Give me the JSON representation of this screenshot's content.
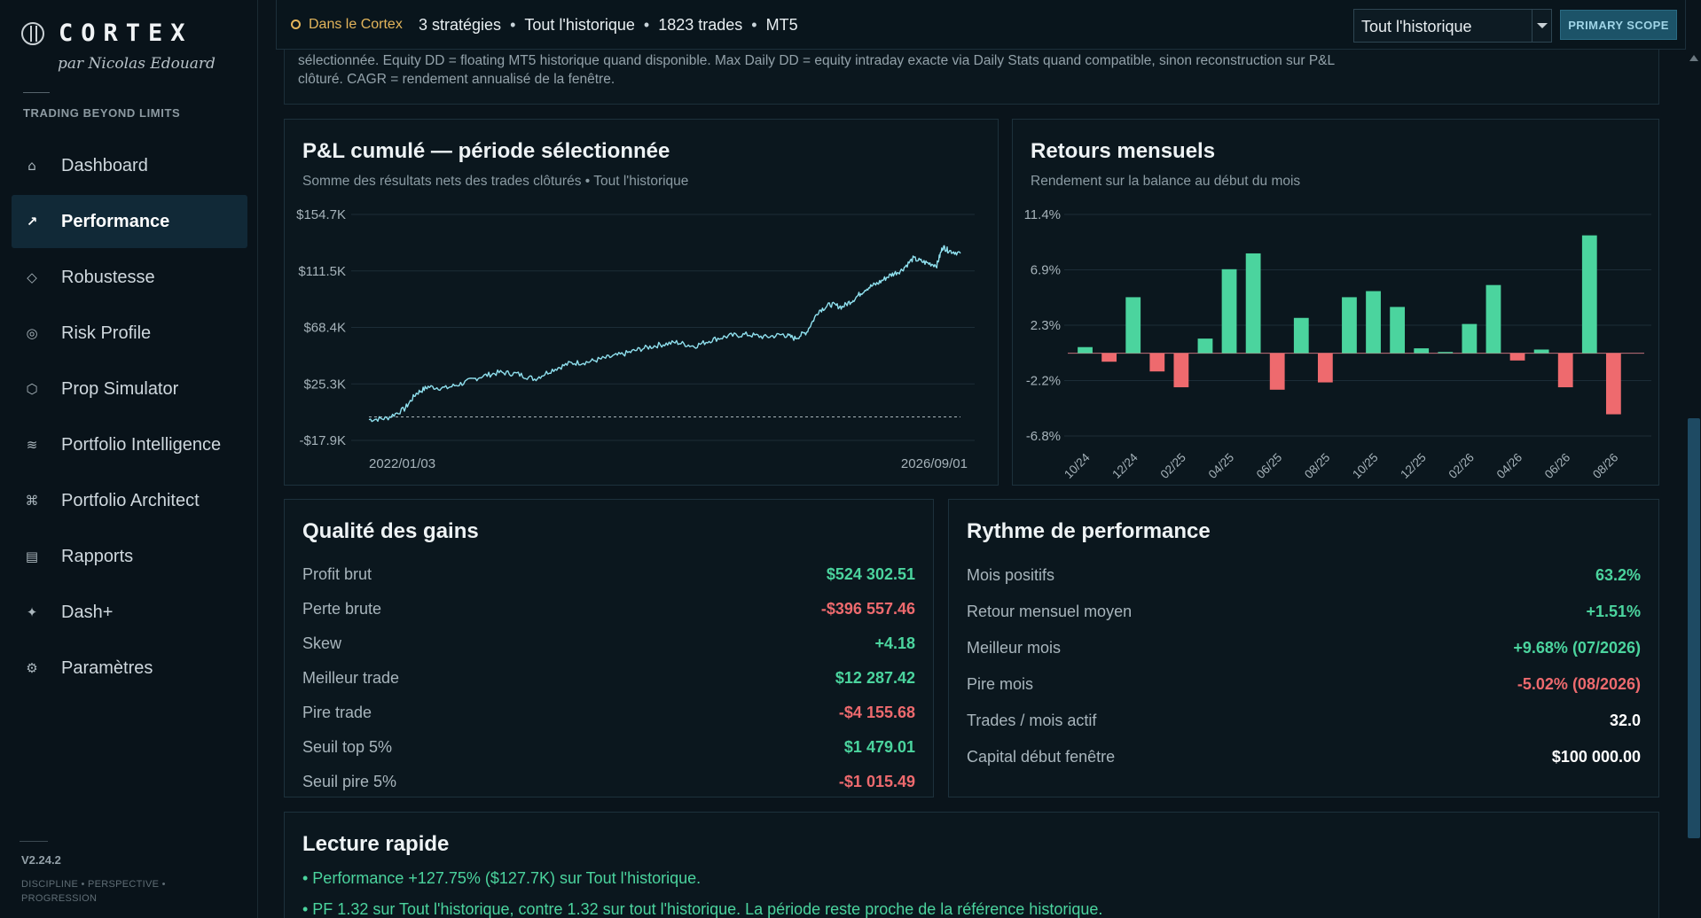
{
  "brand": {
    "name": "CORTEX",
    "author": "par Nicolas Edouard",
    "tagline": "TRADING BEYOND LIMITS",
    "version": "V2.24.2",
    "motto": "DISCIPLINE • PERSPECTIVE • PROGRESSION"
  },
  "nav": [
    {
      "label": "Dashboard",
      "icon": "⌂",
      "icon_name": "home-icon",
      "active": false
    },
    {
      "label": "Performance",
      "icon": "↗",
      "icon_name": "trend-arrow-icon",
      "active": true
    },
    {
      "label": "Robustesse",
      "icon": "◇",
      "icon_name": "diamond-icon",
      "active": false
    },
    {
      "label": "Risk Profile",
      "icon": "◎",
      "icon_name": "target-icon",
      "active": false
    },
    {
      "label": "Prop Simulator",
      "icon": "⬡",
      "icon_name": "hexagon-icon",
      "active": false
    },
    {
      "label": "Portfolio Intelligence",
      "icon": "≋",
      "icon_name": "waves-icon",
      "active": false
    },
    {
      "label": "Portfolio Architect",
      "icon": "⌘",
      "icon_name": "command-icon",
      "active": false
    },
    {
      "label": "Rapports",
      "icon": "▤",
      "icon_name": "report-icon",
      "active": false
    },
    {
      "label": "Dash+",
      "icon": "✦",
      "icon_name": "sparkle-icon",
      "active": false
    },
    {
      "label": "Paramètres",
      "icon": "⚙",
      "icon_name": "gear-icon",
      "active": false
    }
  ],
  "topbar": {
    "scope_label": "Dans le Cortex",
    "strategies": "3 stratégies",
    "period": "Tout l'historique",
    "trades": "1823 trades",
    "platform": "MT5",
    "select_value": "Tout l'historique",
    "primary_scope": "PRIMARY SCOPE"
  },
  "note": "* Sharpe / Sortino réalisés = rendements journaliers des P&L clôturés, annualisés (252 jours, taux sans risque/MAR 0). Max Drawdown = DD des trades clôturés sur la période sélectionnée. Equity DD = floating MT5 historique quand disponible. Max Daily DD = equity intraday exacte via Daily Stats quand compatible, sinon reconstruction sur P&L clôturé. CAGR = rendement annualisé de la fenêtre.",
  "pnl_card": {
    "title": "P&L cumulé — période sélectionnée",
    "subtitle": "Somme des résultats nets des trades clôturés • Tout l'historique"
  },
  "monthly_card": {
    "title": "Retours mensuels",
    "subtitle": "Rendement sur la balance au début du mois"
  },
  "chart_data": [
    {
      "type": "line",
      "title": "P&L cumulé — période sélectionnée",
      "x_range": [
        "2022/01/03",
        "2026/09/01"
      ],
      "ylim": [
        -17900,
        154700
      ],
      "y_ticks": [
        "$154.7K",
        "$111.5K",
        "$68.4K",
        "$25.3K",
        "-$17.9K"
      ],
      "x_tick_labels": [
        "2022/01/03",
        "2026/09/01"
      ],
      "baseline": 0,
      "series": [
        {
          "x": [
            0,
            0.03,
            0.06,
            0.08,
            0.1,
            0.13,
            0.16,
            0.19,
            0.22,
            0.25,
            0.28,
            0.31,
            0.34,
            0.37,
            0.4,
            0.43,
            0.46,
            0.49,
            0.52,
            0.55,
            0.58,
            0.61,
            0.64,
            0.67,
            0.7,
            0.72,
            0.74,
            0.76,
            0.78,
            0.8,
            0.82,
            0.84,
            0.86,
            0.88,
            0.9,
            0.92,
            0.94,
            0.96,
            0.97,
            0.98,
            1.0
          ],
          "y": [
            -2000,
            -1000,
            6000,
            18000,
            23000,
            22000,
            26000,
            31000,
            34000,
            33000,
            29000,
            36000,
            41000,
            42000,
            45000,
            48000,
            52000,
            55000,
            57000,
            54000,
            59000,
            62000,
            63000,
            61000,
            63000,
            60000,
            65000,
            81000,
            86000,
            84000,
            90000,
            98000,
            102000,
            108000,
            112000,
            121000,
            118000,
            116000,
            130000,
            127000,
            125000
          ]
        }
      ],
      "grid": true
    },
    {
      "type": "bar",
      "title": "Retours mensuels",
      "ylim": [
        -6.8,
        11.4
      ],
      "y_ticks": [
        "11.4%",
        "6.9%",
        "2.3%",
        "-2.2%",
        "-6.8%"
      ],
      "categories": [
        "10/24",
        "11/24",
        "12/24",
        "01/25",
        "02/25",
        "03/25",
        "04/25",
        "05/25",
        "06/25",
        "07/25",
        "08/25",
        "09/25",
        "10/25",
        "11/25",
        "12/25",
        "01/26",
        "02/26",
        "03/26",
        "04/26",
        "05/26",
        "06/26",
        "07/26",
        "08/26",
        "09/26"
      ],
      "x_tick_labels": [
        "10/24",
        "12/24",
        "02/25",
        "04/25",
        "06/25",
        "08/25",
        "10/25",
        "12/25",
        "02/26",
        "04/26",
        "06/26",
        "08/26"
      ],
      "values": [
        0.5,
        -0.7,
        4.6,
        -1.5,
        -2.8,
        1.2,
        6.9,
        8.2,
        -3.0,
        2.9,
        -2.4,
        4.6,
        5.1,
        3.8,
        0.4,
        0.1,
        2.4,
        5.6,
        -0.6,
        0.3,
        -2.8,
        9.68,
        -5.02,
        0.0
      ],
      "grid": true
    }
  ],
  "gains_card": {
    "title": "Qualité des gains",
    "rows": [
      {
        "label": "Profit brut",
        "value": "$524 302.51",
        "tone": "pos"
      },
      {
        "label": "Perte brute",
        "value": "-$396 557.46",
        "tone": "neg"
      },
      {
        "label": "Skew",
        "value": "+4.18",
        "tone": "pos"
      },
      {
        "label": "Meilleur trade",
        "value": "$12 287.42",
        "tone": "pos"
      },
      {
        "label": "Pire trade",
        "value": "-$4 155.68",
        "tone": "neg"
      },
      {
        "label": "Seuil top 5%",
        "value": "$1 479.01",
        "tone": "pos"
      },
      {
        "label": "Seuil pire 5%",
        "value": "-$1 015.49",
        "tone": "neg"
      }
    ]
  },
  "rhythm_card": {
    "title": "Rythme de performance",
    "rows": [
      {
        "label": "Mois positifs",
        "value": "63.2%",
        "tone": "pos"
      },
      {
        "label": "Retour mensuel moyen",
        "value": "+1.51%",
        "tone": "pos"
      },
      {
        "label": "Meilleur mois",
        "value": "+9.68% (07/2026)",
        "tone": "pos"
      },
      {
        "label": "Pire mois",
        "value": "-5.02% (08/2026)",
        "tone": "neg"
      },
      {
        "label": "Trades / mois actif",
        "value": "32.0",
        "tone": "neu"
      },
      {
        "label": "Capital début fenêtre",
        "value": "$100 000.00",
        "tone": "neu"
      }
    ]
  },
  "quick_card": {
    "title": "Lecture rapide",
    "lines": [
      "• Performance +127.75% ($127.7K) sur Tout l'historique.",
      "• PF 1.32 sur Tout l'historique, contre 1.32 sur tout l'historique. La période reste proche de la référence historique."
    ]
  },
  "colors": {
    "positive": "#4bd49e",
    "negative": "#ee6a6e",
    "line": "#8fe0ee",
    "accent": "#e3b55b"
  }
}
